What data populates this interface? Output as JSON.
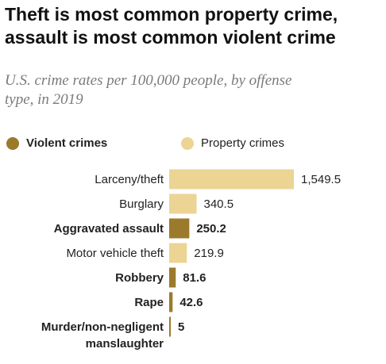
{
  "title": {
    "line1": "Theft is most common property crime,",
    "line2": "assault is most common violent crime"
  },
  "subtitle": {
    "line1": "U.S. crime rates per 100,000 people, by offense",
    "line2": "type, in 2019"
  },
  "colors": {
    "violent": "#9b7a2c",
    "property": "#ebd494",
    "text": "#222222"
  },
  "legend": {
    "violent": "Violent crimes",
    "property": "Property crimes"
  },
  "chart_data": {
    "type": "bar",
    "orientation": "horizontal",
    "title": "Theft is most common property crime, assault is most common violent crime",
    "subtitle": "U.S. crime rates per 100,000 people, by offense type, in 2019",
    "xlim": [
      0,
      1549.5
    ],
    "grid": false,
    "legend_position": "top",
    "bars": [
      {
        "label": [
          "Larceny/theft"
        ],
        "value": 1549.5,
        "value_label": "1,549.5",
        "group": "property"
      },
      {
        "label": [
          "Burglary"
        ],
        "value": 340.5,
        "value_label": "340.5",
        "group": "property"
      },
      {
        "label": [
          "Aggravated assault"
        ],
        "value": 250.2,
        "value_label": "250.2",
        "group": "violent"
      },
      {
        "label": [
          "Motor vehicle theft"
        ],
        "value": 219.9,
        "value_label": "219.9",
        "group": "property"
      },
      {
        "label": [
          "Robbery"
        ],
        "value": 81.6,
        "value_label": "81.6",
        "group": "violent"
      },
      {
        "label": [
          "Rape"
        ],
        "value": 42.6,
        "value_label": "42.6",
        "group": "violent"
      },
      {
        "label": [
          "Murder/non-negligent",
          "manslaughter"
        ],
        "value": 5,
        "value_label": "5",
        "group": "violent"
      }
    ]
  }
}
